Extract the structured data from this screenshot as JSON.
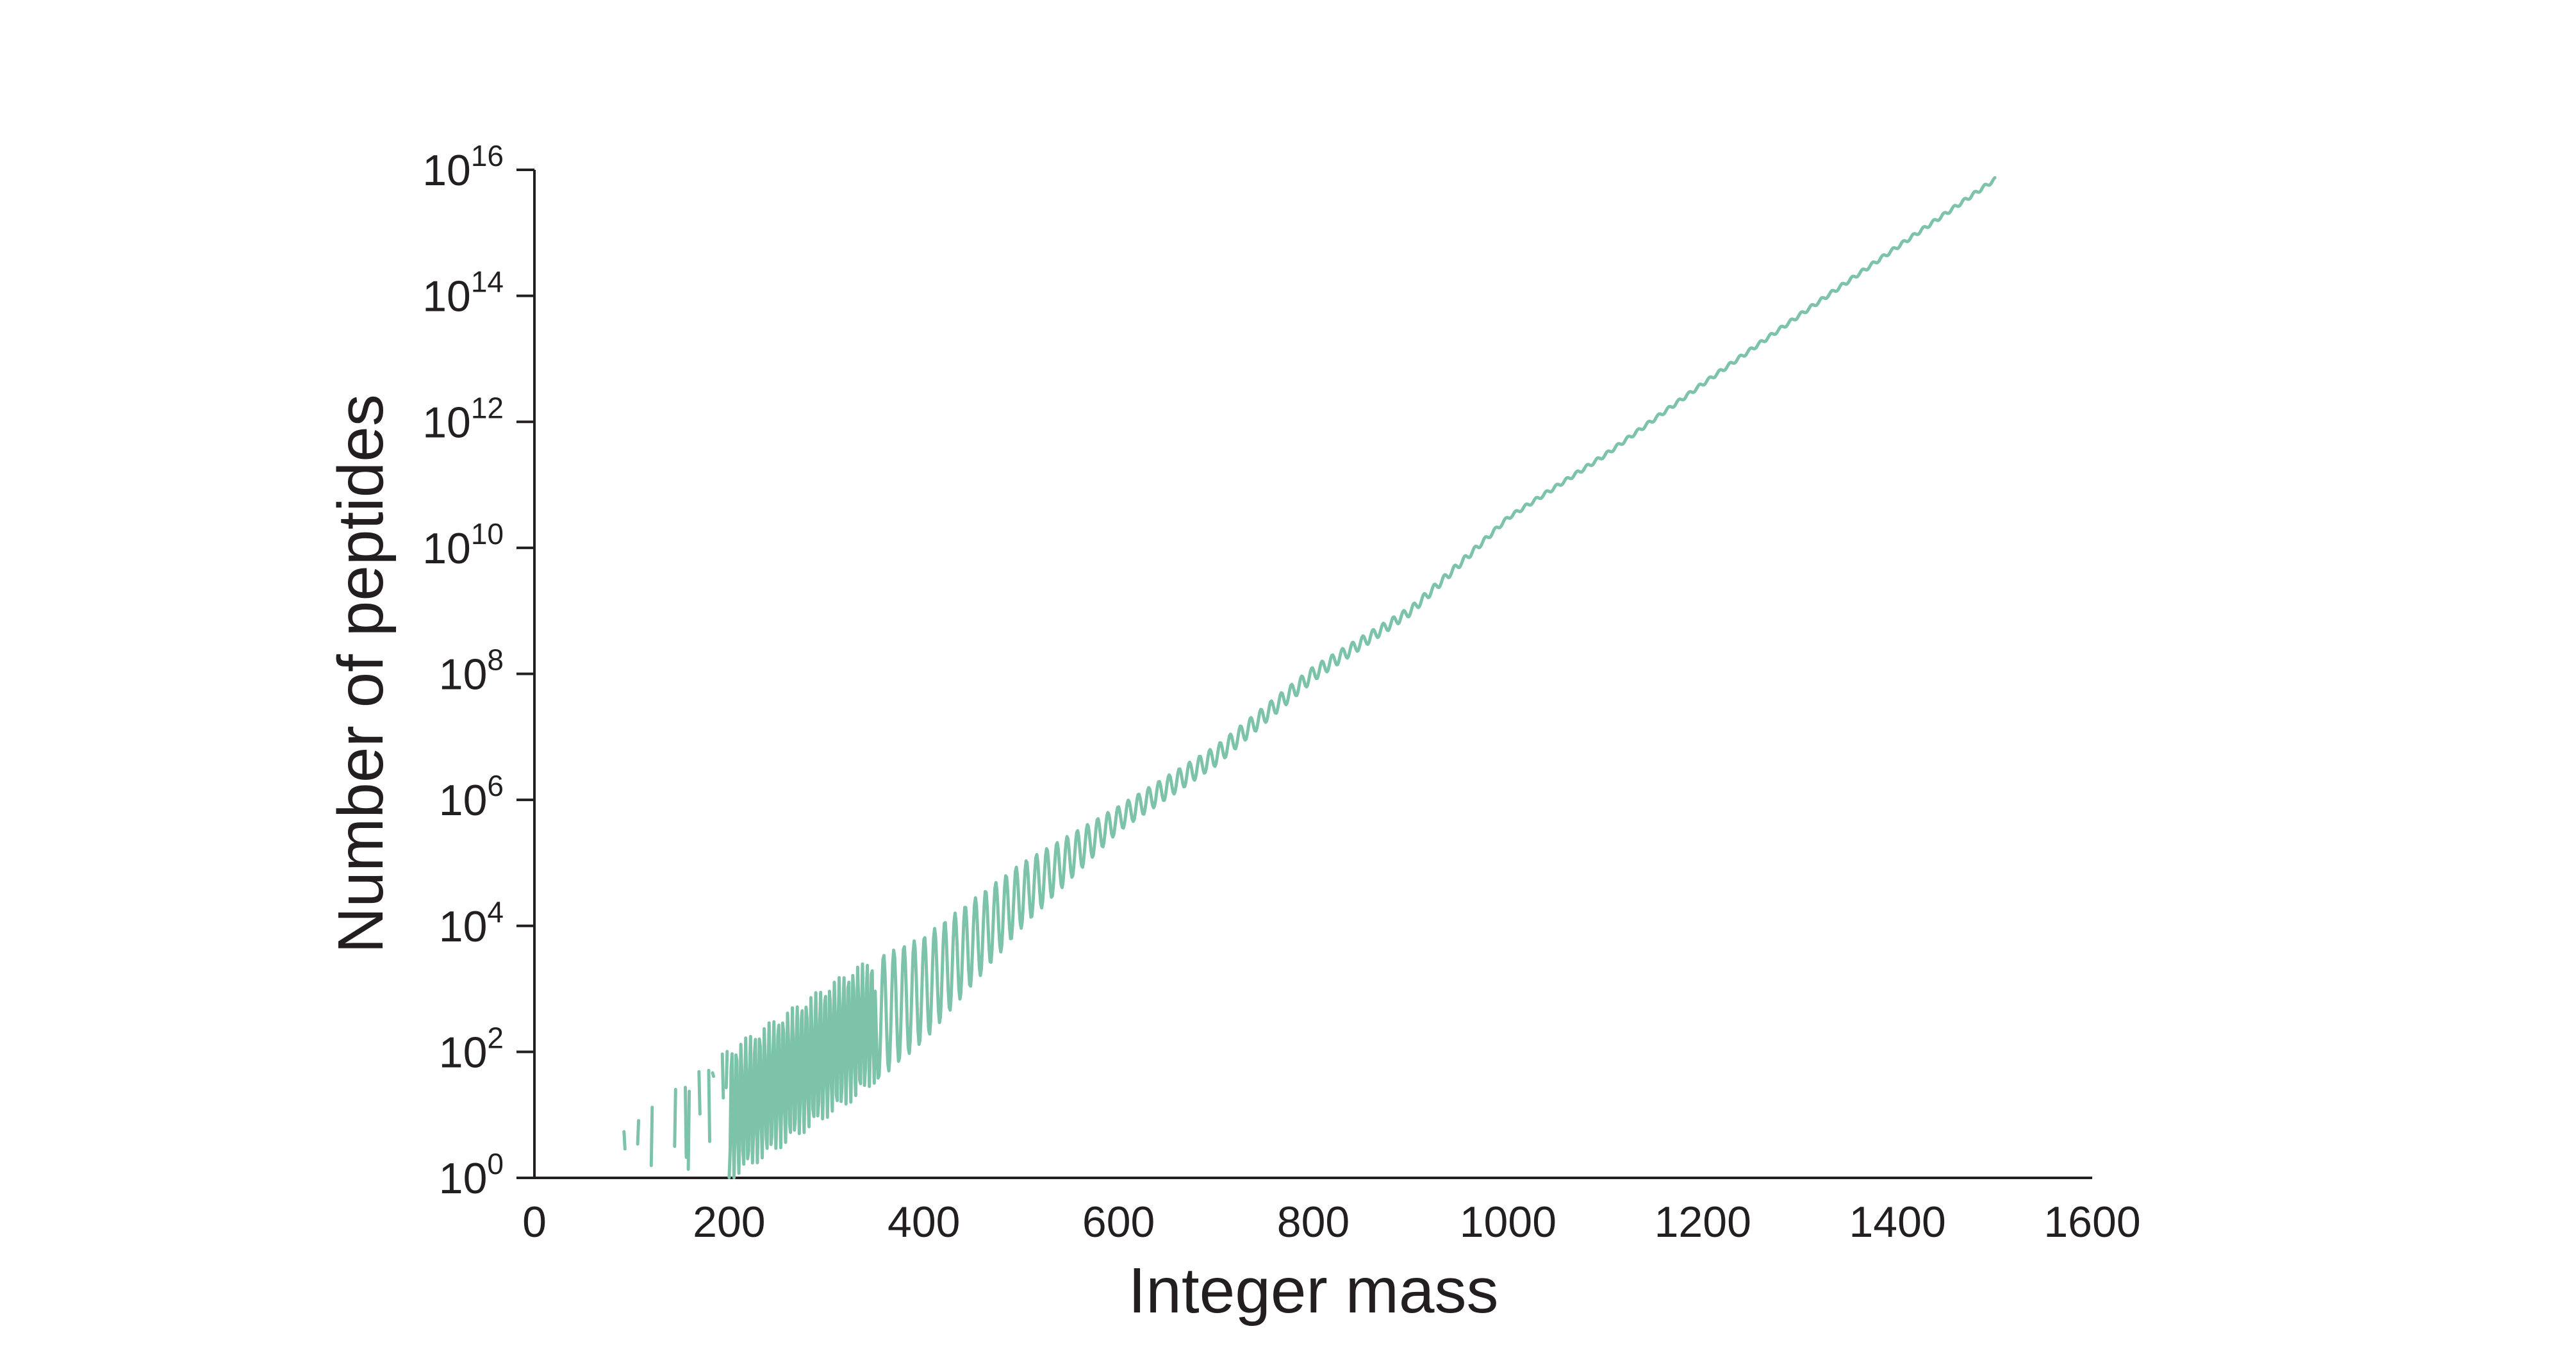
{
  "chart_data": {
    "type": "line",
    "title": "",
    "xlabel": "Integer mass",
    "ylabel": "Number of peptides",
    "xlim": [
      0,
      1600
    ],
    "ylim_log10": [
      0,
      16
    ],
    "y_scale": "log",
    "grid": false,
    "legend": "none",
    "x_ticks": [
      0,
      200,
      400,
      600,
      800,
      1000,
      1200,
      1400,
      1600
    ],
    "x_tick_labels": [
      "0",
      "200",
      "400",
      "600",
      "800",
      "1000",
      "1200",
      "1400",
      "1600"
    ],
    "y_ticks_log10": [
      0,
      2,
      4,
      6,
      8,
      10,
      12,
      14,
      16
    ],
    "y_tick_labels": [
      {
        "base": "10",
        "exp": "0"
      },
      {
        "base": "10",
        "exp": "2"
      },
      {
        "base": "10",
        "exp": "4"
      },
      {
        "base": "10",
        "exp": "6"
      },
      {
        "base": "10",
        "exp": "8"
      },
      {
        "base": "10",
        "exp": "10"
      },
      {
        "base": "10",
        "exp": "12"
      },
      {
        "base": "10",
        "exp": "14"
      },
      {
        "base": "10",
        "exp": "16"
      }
    ],
    "series": [
      {
        "color": "#7dc3a9",
        "x_range": [
          57,
          1500
        ],
        "description_points": [
          {
            "x": 114,
            "y": 1
          },
          {
            "x": 200,
            "y": 10
          },
          {
            "x": 300,
            "y": 100
          },
          {
            "x": 400,
            "y": 1000
          },
          {
            "x": 500,
            "y": 30000
          },
          {
            "x": 600,
            "y": 500000
          },
          {
            "x": 700,
            "y": 5000000
          },
          {
            "x": 800,
            "y": 100000000
          },
          {
            "x": 900,
            "y": 1000000000
          },
          {
            "x": 1000,
            "y": 30000000000
          },
          {
            "x": 1100,
            "y": 300000000000
          },
          {
            "x": 1200,
            "y": 4000000000000
          },
          {
            "x": 1300,
            "y": 50000000000000
          },
          {
            "x": 1400,
            "y": 600000000000000
          },
          {
            "x": 1500,
            "y": 7000000000000000
          }
        ]
      }
    ]
  }
}
